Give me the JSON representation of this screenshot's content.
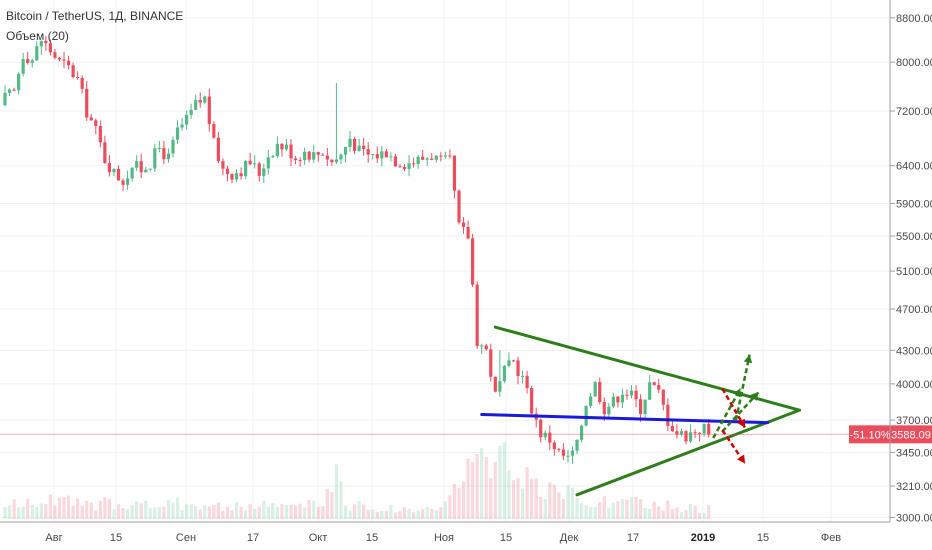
{
  "chart_data": {
    "type": "candlestick",
    "title": "Bitcoin / TetherUS, 1Д, BINANCE",
    "indicator": "Объем (20)",
    "y_axis": {
      "scale": "log",
      "ticks": [
        "8800.00",
        "8000.00",
        "7200.00",
        "6400.00",
        "5900.00",
        "5500.00",
        "5100.00",
        "4700.00",
        "4300.00",
        "4000.00",
        "3700.00",
        "3450.00",
        "3210.00",
        "3000.00"
      ],
      "ylim": [
        2990,
        8950
      ]
    },
    "x_axis": {
      "ticks": [
        {
          "label": "Авг",
          "bold": false
        },
        {
          "label": "15",
          "bold": false
        },
        {
          "label": "Сен",
          "bold": false
        },
        {
          "label": "17",
          "bold": false
        },
        {
          "label": "Окт",
          "bold": false
        },
        {
          "label": "15",
          "bold": false
        },
        {
          "label": "Ноя",
          "bold": false
        },
        {
          "label": "15",
          "bold": false
        },
        {
          "label": "Дек",
          "bold": false
        },
        {
          "label": "17",
          "bold": false
        },
        {
          "label": "2019",
          "bold": true
        },
        {
          "label": "15",
          "bold": false
        },
        {
          "label": "Фев",
          "bold": false
        }
      ]
    },
    "last_price": {
      "value": 3588.09,
      "label": "3588.09",
      "change_label": "-51.10%"
    },
    "colors": {
      "up": "#53b987",
      "down": "#eb4d5c",
      "trendline": "#2e7d1a",
      "support": "#1a1adb",
      "arrow_up": "#2e7d1a",
      "arrow_down": "#cc0000"
    },
    "price_anchors": [
      [
        0,
        7400
      ],
      [
        2,
        7500
      ],
      [
        4,
        8150
      ],
      [
        6,
        8050
      ],
      [
        8,
        8400
      ],
      [
        10,
        8200
      ],
      [
        12,
        8000
      ],
      [
        14,
        7900
      ],
      [
        16,
        7700
      ],
      [
        18,
        7200
      ],
      [
        20,
        6900
      ],
      [
        22,
        6500
      ],
      [
        24,
        6300
      ],
      [
        26,
        6200
      ],
      [
        28,
        6400
      ],
      [
        30,
        6350
      ],
      [
        32,
        6450
      ],
      [
        34,
        6650
      ],
      [
        36,
        6500
      ],
      [
        38,
        6900
      ],
      [
        40,
        7050
      ],
      [
        42,
        7300
      ],
      [
        44,
        7400
      ],
      [
        46,
        6700
      ],
      [
        48,
        6350
      ],
      [
        50,
        6300
      ],
      [
        52,
        6350
      ],
      [
        54,
        6450
      ],
      [
        56,
        6300
      ],
      [
        58,
        6550
      ],
      [
        60,
        6700
      ],
      [
        62,
        6650
      ],
      [
        64,
        6520
      ],
      [
        66,
        6600
      ],
      [
        68,
        6550
      ],
      [
        70,
        6600
      ],
      [
        72,
        6450
      ],
      [
        74,
        6550
      ],
      [
        76,
        6800
      ],
      [
        78,
        6600
      ],
      [
        80,
        6550
      ],
      [
        82,
        6550
      ],
      [
        84,
        6600
      ],
      [
        86,
        6480
      ],
      [
        88,
        6440
      ],
      [
        90,
        6460
      ],
      [
        92,
        6500
      ],
      [
        94,
        6550
      ],
      [
        96,
        6450
      ],
      [
        98,
        6450
      ],
      [
        100,
        5600
      ],
      [
        102,
        5500
      ],
      [
        104,
        4400
      ],
      [
        106,
        4300
      ],
      [
        108,
        3900
      ],
      [
        110,
        4100
      ],
      [
        112,
        4200
      ],
      [
        114,
        4050
      ],
      [
        116,
        3800
      ],
      [
        118,
        3600
      ],
      [
        120,
        3550
      ],
      [
        122,
        3450
      ],
      [
        124,
        3400
      ],
      [
        126,
        3500
      ],
      [
        128,
        3850
      ],
      [
        130,
        4000
      ],
      [
        132,
        3800
      ],
      [
        134,
        3850
      ],
      [
        136,
        3950
      ],
      [
        138,
        3900
      ],
      [
        140,
        3800
      ],
      [
        142,
        4000
      ],
      [
        144,
        3920
      ],
      [
        146,
        3700
      ],
      [
        148,
        3600
      ],
      [
        150,
        3580
      ],
      [
        152,
        3620
      ],
      [
        154,
        3640
      ],
      [
        155,
        3588
      ]
    ],
    "spike_highs": [
      [
        73,
        7650
      ],
      [
        109,
        4300
      ],
      [
        89,
        6550
      ]
    ],
    "volume_anchors": [
      [
        0,
        0.1
      ],
      [
        5,
        0.12
      ],
      [
        10,
        0.15
      ],
      [
        15,
        0.12
      ],
      [
        20,
        0.1
      ],
      [
        25,
        0.14
      ],
      [
        30,
        0.11
      ],
      [
        35,
        0.1
      ],
      [
        40,
        0.13
      ],
      [
        45,
        0.1
      ],
      [
        50,
        0.09
      ],
      [
        55,
        0.1
      ],
      [
        60,
        0.11
      ],
      [
        65,
        0.1
      ],
      [
        70,
        0.12
      ],
      [
        73,
        0.42
      ],
      [
        75,
        0.11
      ],
      [
        80,
        0.09
      ],
      [
        85,
        0.08
      ],
      [
        90,
        0.07
      ],
      [
        95,
        0.09
      ],
      [
        98,
        0.16
      ],
      [
        100,
        0.28
      ],
      [
        102,
        0.38
      ],
      [
        104,
        0.44
      ],
      [
        106,
        0.35
      ],
      [
        108,
        0.38
      ],
      [
        110,
        0.42
      ],
      [
        112,
        0.32
      ],
      [
        114,
        0.3
      ],
      [
        116,
        0.26
      ],
      [
        118,
        0.22
      ],
      [
        120,
        0.2
      ],
      [
        122,
        0.18
      ],
      [
        124,
        0.22
      ],
      [
        126,
        0.18
      ],
      [
        128,
        0.16
      ],
      [
        130,
        0.14
      ],
      [
        132,
        0.13
      ],
      [
        134,
        0.13
      ],
      [
        136,
        0.12
      ],
      [
        138,
        0.13
      ],
      [
        140,
        0.11
      ],
      [
        142,
        0.11
      ],
      [
        144,
        0.1
      ],
      [
        146,
        0.1
      ],
      [
        148,
        0.09
      ],
      [
        150,
        0.09
      ],
      [
        152,
        0.08
      ],
      [
        155,
        0.08
      ]
    ],
    "volume_spikes": [
      [
        73,
        0.42
      ],
      [
        104,
        0.5
      ],
      [
        108,
        0.44
      ]
    ],
    "annotations": {
      "triangle_upper": {
        "from": [
          108,
          4520
        ],
        "to": [
          175,
          3780
        ]
      },
      "triangle_lower": {
        "from": [
          126,
          3150
        ],
        "to": [
          175,
          3780
        ]
      },
      "support_line": {
        "from": [
          105,
          3745
        ],
        "to": [
          168,
          3680
        ]
      },
      "green_arrows": [
        {
          "from": [
            156,
            3560
          ],
          "to": [
            162,
            3960
          ]
        },
        {
          "from": [
            158,
            3610
          ],
          "to": [
            166,
            3930
          ]
        },
        {
          "from": [
            161,
            3700
          ],
          "to": [
            164,
            4260
          ]
        }
      ],
      "red_arrows": [
        {
          "from": [
            158,
            3960
          ],
          "to": [
            163,
            3640
          ]
        },
        {
          "from": [
            158,
            3620
          ],
          "to": [
            163,
            3370
          ]
        }
      ]
    }
  }
}
